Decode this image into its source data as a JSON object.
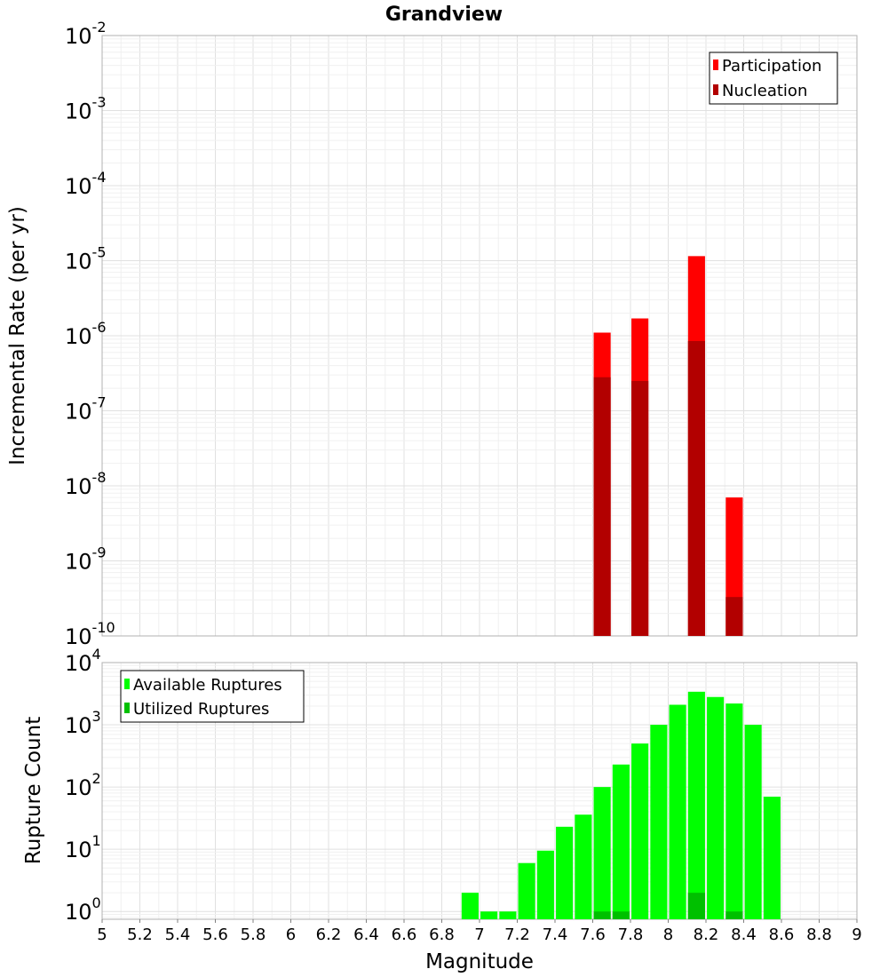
{
  "chart_data": [
    {
      "type": "bar",
      "title": "Grandview",
      "xlabel": "",
      "ylabel": "Incremental Rate (per yr)",
      "xlim": [
        5,
        9
      ],
      "ylim": [
        1e-10,
        0.01
      ],
      "yscale": "log",
      "ytick_labels": [
        {
          "base": "10",
          "exp": "-2"
        },
        {
          "base": "10",
          "exp": "-3"
        },
        {
          "base": "10",
          "exp": "-4"
        },
        {
          "base": "10",
          "exp": "-5"
        },
        {
          "base": "10",
          "exp": "-6"
        },
        {
          "base": "10",
          "exp": "-7"
        },
        {
          "base": "10",
          "exp": "-8"
        },
        {
          "base": "10",
          "exp": "-9"
        },
        {
          "base": "10",
          "exp": "-10"
        }
      ],
      "grid": true,
      "legend_position": "top-right",
      "categories": [
        7.65,
        7.85,
        8.15,
        8.35
      ],
      "bar_width": 0.09,
      "series": [
        {
          "name": "Participation",
          "color": "#ff0000",
          "values": [
            1.1e-06,
            1.7e-06,
            1.15e-05,
            7e-09
          ]
        },
        {
          "name": "Nucleation",
          "color": "#b20000",
          "values": [
            2.8e-07,
            2.5e-07,
            8.5e-07,
            3.3e-10
          ]
        }
      ]
    },
    {
      "type": "bar",
      "title": "",
      "xlabel": "Magnitude",
      "ylabel": "Rupture Count",
      "xlim": [
        5,
        9
      ],
      "ylim": [
        0.75,
        10000
      ],
      "yscale": "log",
      "ytick_labels": [
        {
          "base": "10",
          "exp": "4"
        },
        {
          "base": "10",
          "exp": "3"
        },
        {
          "base": "10",
          "exp": "2"
        },
        {
          "base": "10",
          "exp": "1"
        },
        {
          "base": "10",
          "exp": "0"
        }
      ],
      "xtick_labels": [
        "5",
        "5.2",
        "5.4",
        "5.6",
        "5.8",
        "6",
        "6.2",
        "6.4",
        "6.6",
        "6.8",
        "7",
        "7.2",
        "7.4",
        "7.6",
        "7.8",
        "8",
        "8.2",
        "8.4",
        "8.6",
        "8.8",
        "9"
      ],
      "grid": true,
      "legend_position": "top-left",
      "categories": [
        6.95,
        7.05,
        7.15,
        7.25,
        7.35,
        7.45,
        7.55,
        7.65,
        7.75,
        7.85,
        7.95,
        8.05,
        8.15,
        8.25,
        8.35,
        8.45,
        8.55
      ],
      "bar_width": 0.09,
      "series": [
        {
          "name": "Available Ruptures",
          "color": "#00ff00",
          "values": [
            2,
            1,
            1,
            6,
            9.5,
            23,
            36,
            100,
            230,
            500,
            1000,
            2100,
            3400,
            2800,
            2200,
            1000,
            70
          ]
        },
        {
          "name": "Utilized Ruptures",
          "color": "#00c000",
          "values": [
            0,
            0,
            0,
            0,
            0,
            0,
            0,
            1,
            1,
            0,
            0,
            0,
            2,
            0,
            1,
            0,
            0
          ]
        }
      ]
    }
  ]
}
